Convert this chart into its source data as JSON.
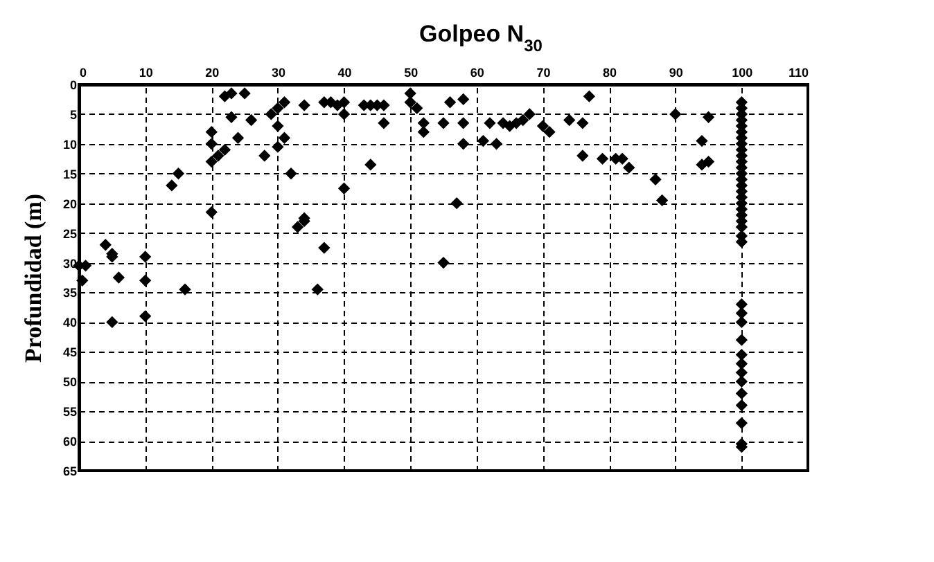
{
  "chart_data": {
    "type": "scatter",
    "title": "Golpeo N$_{30}$",
    "ylabel": "Profundidad (m)",
    "x": [
      0,
      1,
      0.5,
      4,
      5,
      5,
      6,
      5,
      10,
      10,
      10,
      16,
      14,
      15,
      20,
      20,
      20,
      20,
      21,
      22,
      23,
      22,
      25,
      23,
      24,
      26,
      28,
      29,
      30,
      30,
      31,
      30,
      31,
      32,
      33,
      34,
      34,
      34,
      36,
      37,
      37,
      38,
      39,
      40,
      40,
      40,
      43,
      44,
      44,
      45,
      46,
      46,
      50,
      50,
      51,
      52,
      52,
      55,
      55,
      56,
      57,
      58,
      58,
      58,
      61,
      62,
      63,
      64,
      65,
      66,
      67,
      68,
      70,
      71,
      74,
      76,
      76,
      77,
      79,
      81,
      82,
      83,
      87,
      88,
      90,
      94,
      94,
      95,
      95,
      100,
      100,
      100,
      100,
      100,
      100,
      100,
      100,
      100,
      100,
      100,
      100,
      100,
      100,
      100,
      100,
      100,
      100,
      100,
      100,
      100,
      100,
      100,
      100,
      100,
      100,
      100,
      100,
      100,
      100,
      100,
      100,
      100,
      100,
      100,
      100,
      100
    ],
    "series": [
      {
        "color": "#000000",
        "values": [
          30.5,
          30.5,
          33,
          27,
          28.5,
          29,
          32.5,
          40,
          29,
          33,
          39,
          34.5,
          17,
          15,
          21.5,
          8,
          10,
          13,
          12,
          11,
          1.5,
          2,
          1.5,
          5.5,
          9,
          6,
          12,
          5,
          7,
          4,
          9,
          10.5,
          3,
          15,
          24,
          23,
          22.5,
          3.5,
          34.5,
          27.5,
          3,
          3,
          3.5,
          3,
          17.5,
          5,
          3.5,
          13.5,
          3.5,
          3.5,
          6.5,
          3.5,
          1.5,
          3,
          4,
          8,
          6.5,
          6.5,
          30,
          3,
          20,
          2.5,
          6.5,
          10,
          9.5,
          6.5,
          10,
          6.5,
          7,
          6.5,
          6,
          5,
          7,
          8,
          6,
          6.5,
          12,
          2,
          12.5,
          12.5,
          12.5,
          14,
          16,
          19.5,
          5,
          13.5,
          9.5,
          13,
          5.5,
          3,
          4,
          5,
          6,
          7,
          8,
          9,
          10,
          11,
          12,
          13,
          14,
          15,
          16,
          17,
          18,
          19,
          20,
          21,
          22,
          23,
          24,
          25.5,
          26.5,
          37,
          38.5,
          40,
          43,
          45.5,
          47,
          48.5,
          50,
          52,
          54,
          57,
          60.5,
          61
        ]
      }
    ],
    "xlim": [
      0,
      110
    ],
    "xticks": [
      0,
      10,
      20,
      30,
      40,
      50,
      60,
      70,
      80,
      90,
      100,
      110
    ],
    "ylim": [
      65,
      0
    ],
    "yticks": [
      0,
      5,
      10,
      15,
      20,
      25,
      30,
      35,
      40,
      45,
      50,
      55,
      60,
      65
    ],
    "grid": true,
    "marker": "diamond"
  }
}
